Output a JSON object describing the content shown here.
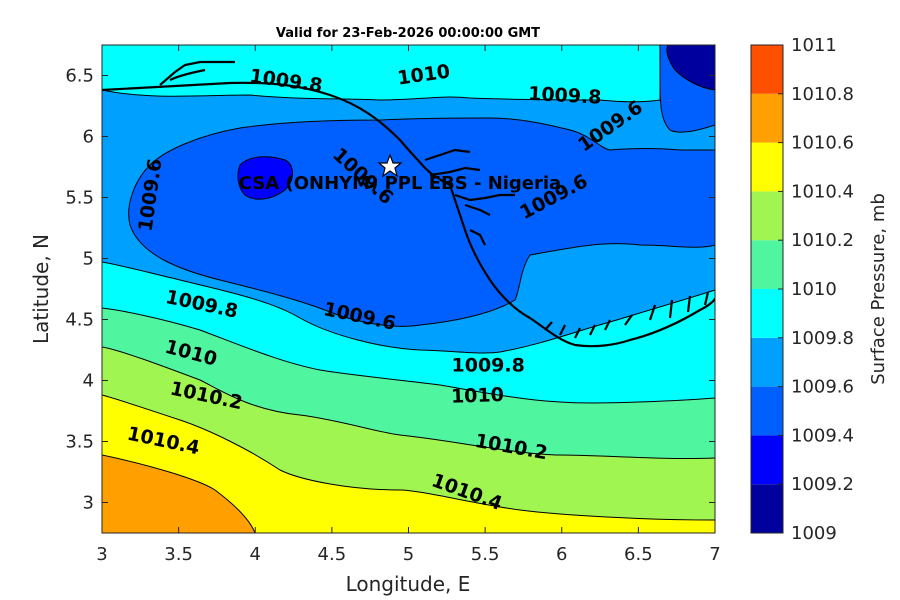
{
  "chart_data": {
    "type": "contour",
    "title": "Valid for 23-Feb-2026 00:00:00 GMT",
    "xlabel": "Longitude, E",
    "ylabel": "Latitude, N",
    "xlim": [
      3,
      7
    ],
    "ylim": [
      2.75,
      6.75
    ],
    "x_ticks": [
      "3",
      "3.5",
      "4",
      "4.5",
      "5",
      "5.5",
      "6",
      "6.5",
      "7"
    ],
    "y_ticks": [
      "3",
      "3.5",
      "4",
      "4.5",
      "5",
      "5.5",
      "6",
      "6.5"
    ],
    "colorbar": {
      "label": "Surface Pressure, mb",
      "levels": [
        1009,
        1009.2,
        1009.4,
        1009.6,
        1009.8,
        1010,
        1010.2,
        1010.4,
        1010.6,
        1010.8,
        1011
      ],
      "tick_labels": [
        "1009",
        "1009.2",
        "1009.4",
        "1009.6",
        "1009.8",
        "1010",
        "1010.2",
        "1010.4",
        "1010.6",
        "1010.8",
        "1011"
      ],
      "colors": [
        "#00009f",
        "#0000ff",
        "#0060ff",
        "#00a0ff",
        "#00ffff",
        "#50f5a0",
        "#a0f550",
        "#ffff00",
        "#ffa000",
        "#ff5000",
        "#ff0000"
      ]
    },
    "contour_labels": [
      {
        "text": "1009.8",
        "lon": 4.2,
        "lat": 6.45,
        "angle": 8
      },
      {
        "text": "1010",
        "lon": 5.1,
        "lat": 6.5,
        "angle": -8
      },
      {
        "text": "1009.8",
        "lon": 6.02,
        "lat": 6.33,
        "angle": 3
      },
      {
        "text": "1009.6",
        "lon": 6.32,
        "lat": 6.08,
        "angle": -35
      },
      {
        "text": "1009.6",
        "lon": 3.32,
        "lat": 5.52,
        "angle": -82
      },
      {
        "text": "1009.6",
        "lon": 4.7,
        "lat": 5.67,
        "angle": 42
      },
      {
        "text": "1009.6",
        "lon": 5.95,
        "lat": 5.5,
        "angle": -28
      },
      {
        "text": "1009.8",
        "lon": 3.65,
        "lat": 4.62,
        "angle": 12
      },
      {
        "text": "1009.6",
        "lon": 4.68,
        "lat": 4.52,
        "angle": 12
      },
      {
        "text": "1010",
        "lon": 3.58,
        "lat": 4.22,
        "angle": 15
      },
      {
        "text": "1009.8",
        "lon": 5.52,
        "lat": 4.12,
        "angle": 0
      },
      {
        "text": "1010.2",
        "lon": 3.68,
        "lat": 3.87,
        "angle": 12
      },
      {
        "text": "1010",
        "lon": 5.45,
        "lat": 3.87,
        "angle": -2
      },
      {
        "text": "1010.4",
        "lon": 3.4,
        "lat": 3.5,
        "angle": 12
      },
      {
        "text": "1010.2",
        "lon": 5.67,
        "lat": 3.45,
        "angle": 10
      },
      {
        "text": "1010.4",
        "lon": 5.38,
        "lat": 3.08,
        "angle": 20
      }
    ],
    "site": {
      "label": "CSA (ONHYM) PPL EBS  - Nigeria",
      "lon": 4.88,
      "lat": 5.75
    },
    "grid": false
  }
}
